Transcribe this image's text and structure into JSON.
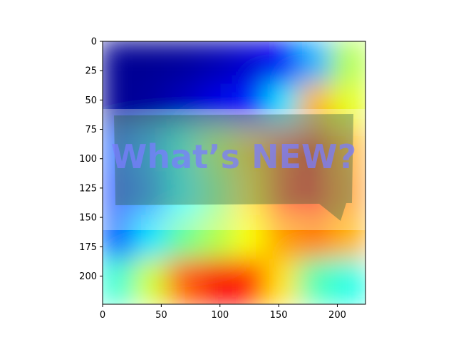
{
  "chart_data": {
    "type": "heatmap",
    "title": "",
    "xlabel": "",
    "ylabel": "",
    "xlim": [
      0,
      224
    ],
    "ylim": [
      224,
      0
    ],
    "xticks": [
      "0",
      "50",
      "100",
      "150",
      "200"
    ],
    "yticks": [
      "0",
      "25",
      "50",
      "75",
      "100",
      "125",
      "150",
      "175",
      "200"
    ],
    "xtick_values": [
      0,
      50,
      100,
      150,
      200
    ],
    "ytick_values": [
      0,
      25,
      50,
      75,
      100,
      125,
      150,
      175,
      200
    ],
    "colormap": "jet",
    "grid": false,
    "image_text": "What’s NEW?",
    "activation_grid": [
      [
        0.02,
        0.02,
        0.03,
        0.05,
        0.08,
        0.12,
        0.3,
        0.55
      ],
      [
        0.02,
        0.03,
        0.06,
        0.1,
        0.15,
        0.35,
        0.7,
        0.6
      ],
      [
        0.2,
        0.28,
        0.4,
        0.55,
        0.68,
        0.8,
        0.9,
        0.72
      ],
      [
        0.18,
        0.25,
        0.38,
        0.5,
        0.66,
        0.82,
        0.88,
        0.74
      ],
      [
        0.22,
        0.35,
        0.48,
        0.55,
        0.62,
        0.72,
        0.75,
        0.7
      ],
      [
        0.42,
        0.58,
        0.78,
        0.88,
        0.85,
        0.65,
        0.45,
        0.4
      ]
    ],
    "colors": {
      "low": "#00007f",
      "mid": "#00ff80",
      "high": "#7f0000"
    }
  }
}
